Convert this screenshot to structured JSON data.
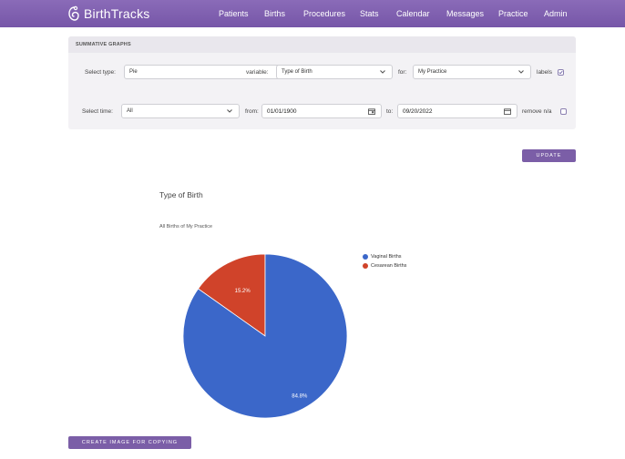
{
  "app": {
    "name": "BirthTracks",
    "nav": [
      "Patients",
      "Births",
      "Procedures",
      "Stats",
      "Calendar",
      "Messages",
      "Practice",
      "Admin"
    ],
    "brand_color": "#7b5ea7"
  },
  "panel": {
    "title": "SUMMATIVE GRAPHS",
    "select_type_label": "Select type:",
    "select_type_value": "Pie",
    "variable_label": "variable:",
    "variable_value": "Type of Birth",
    "for_label": "for:",
    "for_value": "My Practice",
    "labels_label": "labels",
    "labels_checked": true,
    "select_time_label": "Select time:",
    "select_time_value": "All",
    "from_label": "from:",
    "from_value": "01/01/1900",
    "to_label": "to:",
    "to_value": "09/20/2022",
    "remove_na_label": "remove n/a",
    "remove_na_checked": false
  },
  "update_button": "UPDATE",
  "create_image_button": "CREATE IMAGE FOR COPYING",
  "chart_data": {
    "type": "pie",
    "title": "Type of Birth",
    "subtitle": "All Births of My Practice",
    "categories": [
      "Vaginal Births",
      "Cesarean Births"
    ],
    "values": [
      84.8,
      15.2
    ],
    "labels": [
      "84.8%",
      "15.2%"
    ],
    "colors": [
      "#3b67c9",
      "#d0432a"
    ],
    "legend_position": "right"
  }
}
